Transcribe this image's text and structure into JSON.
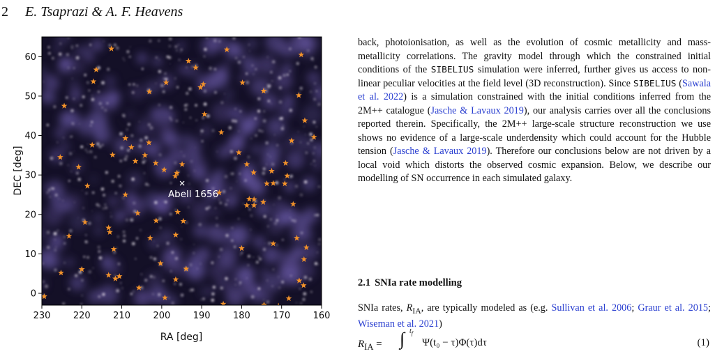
{
  "header": {
    "page_number": "2",
    "running_head": "E. Tsaprazi & A. F. Heavens"
  },
  "figure": {
    "colors": {
      "background": "#141027",
      "filament": "#6a5aa8",
      "galaxy": "#efe8f2",
      "star": "#f2922a",
      "marker": "#ffffff"
    },
    "icons": {
      "sn_marker": "star-icon",
      "cluster_marker": "x-mark-icon"
    },
    "chart_data": {
      "type": "scatter",
      "xlabel": "RA [deg]",
      "ylabel": "DEC [deg]",
      "xlim": [
        230,
        160
      ],
      "ylim": [
        -3,
        65
      ],
      "xticks": [
        230,
        220,
        210,
        200,
        190,
        180,
        170,
        160
      ],
      "yticks": [
        0,
        10,
        20,
        30,
        40,
        50,
        60
      ],
      "annotation": {
        "label": "Abell 1656",
        "ra": 194.9,
        "dec": 27.9
      },
      "series": [
        {
          "points": [
            [
              216.4,
              56.7
            ],
            [
              217.1,
              53.7
            ],
            [
              224.4,
              47.5
            ],
            [
              212.6,
              62.0
            ],
            [
              193.3,
              58.9
            ],
            [
              191.5,
              57.2
            ],
            [
              183.7,
              61.8
            ],
            [
              165.1,
              60.5
            ],
            [
              198.9,
              53.4
            ],
            [
              203.1,
              51.1
            ],
            [
              189.6,
              53.0
            ],
            [
              190.3,
              52.2
            ],
            [
              179.8,
              53.4
            ],
            [
              174.5,
              51.3
            ],
            [
              165.7,
              50.2
            ],
            [
              164.2,
              43.8
            ],
            [
              161.9,
              39.6
            ],
            [
              189.3,
              45.4
            ],
            [
              185.1,
              40.8
            ],
            [
              167.5,
              38.7
            ],
            [
              217.4,
              37.6
            ],
            [
              212.3,
              35.1
            ],
            [
              209.1,
              39.3
            ],
            [
              207.6,
              37.0
            ],
            [
              203.2,
              38.2
            ],
            [
              220.8,
              32.0
            ],
            [
              225.4,
              34.5
            ],
            [
              204.2,
              35.0
            ],
            [
              206.6,
              33.5
            ],
            [
              201.5,
              33.0
            ],
            [
              199.4,
              31.3
            ],
            [
              194.9,
              32.7
            ],
            [
              180.7,
              35.7
            ],
            [
              178.7,
              32.7
            ],
            [
              177.0,
              30.6
            ],
            [
              172.5,
              31.0
            ],
            [
              169.0,
              33.0
            ],
            [
              168.6,
              29.8
            ],
            [
              196.2,
              30.5
            ],
            [
              196.6,
              29.7
            ],
            [
              185.6,
              25.5
            ],
            [
              173.7,
              27.8
            ],
            [
              172.1,
              27.9
            ],
            [
              169.2,
              27.8
            ],
            [
              218.6,
              27.2
            ],
            [
              209.1,
              25.0
            ],
            [
              206.0,
              20.3
            ],
            [
              178.7,
              22.3
            ],
            [
              178.1,
              23.9
            ],
            [
              176.9,
              22.3
            ],
            [
              174.6,
              23.1
            ],
            [
              176.9,
              23.8
            ],
            [
              167.1,
              22.6
            ],
            [
              219.2,
              18.0
            ],
            [
              213.3,
              16.6
            ],
            [
              213.0,
              15.5
            ],
            [
              201.4,
              18.4
            ],
            [
              196.0,
              20.6
            ],
            [
              194.6,
              18.3
            ],
            [
              223.2,
              14.5
            ],
            [
              212.0,
              11.2
            ],
            [
              202.9,
              14.0
            ],
            [
              196.5,
              14.8
            ],
            [
              180.0,
              11.4
            ],
            [
              172.1,
              12.6
            ],
            [
              166.2,
              14.0
            ],
            [
              163.8,
              11.6
            ],
            [
              164.4,
              8.6
            ],
            [
              225.2,
              5.2
            ],
            [
              220.0,
              6.1
            ],
            [
              213.3,
              4.6
            ],
            [
              211.6,
              3.7
            ],
            [
              210.6,
              4.3
            ],
            [
              200.3,
              7.6
            ],
            [
              205.7,
              1.4
            ],
            [
              193.9,
              6.2
            ],
            [
              196.5,
              3.5
            ],
            [
              199.2,
              -1.1
            ],
            [
              229.4,
              -0.8
            ],
            [
              184.6,
              -2.7
            ],
            [
              174.4,
              -2.9
            ],
            [
              170.8,
              -3.2
            ],
            [
              168.2,
              -1.3
            ],
            [
              165.6,
              3.2
            ],
            [
              164.5,
              2.0
            ]
          ]
        }
      ]
    }
  },
  "text": {
    "p1": {
      "t1": "back, photoionisation, as well as the evolution of cosmic metallicity and mass-metallicity correlations. The gravity model through which the constrained initial conditions of the ",
      "sim1": "SIBELIUS",
      "t2": " simulation were inferred, further gives us access to non-linear peculiar velocities at the field level (3D reconstruction). Since ",
      "sim2": "SIBELIUS",
      "t3": " (",
      "cite1": "Sawala et al. 2022",
      "t4": ") is a simulation constrained with the initial conditions inferred from the 2M++ catalogue (",
      "cite2": "Jasche & Lavaux 2019",
      "t5": "), our analysis carries over all the conclusions reported therein. Specifically, the 2M++ large-scale structure reconstruction we use shows no evidence of a large-scale underdensity which could account for the Hubble tension (",
      "cite3": "Jasche & Lavaux 2019",
      "t6": "). Therefore our conclusions below are not driven by a local void which distorts the observed cosmic expansion. Below, we describe our modelling of SN occurrence in each simulated galaxy."
    },
    "section": {
      "number": "2.1",
      "title": "SNIa rate modelling"
    },
    "p2": {
      "t1": "SNIa rates, ",
      "sym": "R",
      "sub": "IA",
      "t2": ", are typically modeled as (e.g. ",
      "cite1": "Sullivan et al. 2006",
      "t3": "; ",
      "cite2": "Graur et al. 2015",
      "t4": "; ",
      "cite3": "Wiseman et al. 2021",
      "t5": ")"
    },
    "equation": {
      "lhs": "R",
      "lhs_sub": "IA",
      "eq": " = ",
      "int_upper": "t",
      "int_upper_sub": "f",
      "rhs": "Ψ(t₀ − τ)Φ(τ)dτ",
      "number": "(1)"
    }
  }
}
